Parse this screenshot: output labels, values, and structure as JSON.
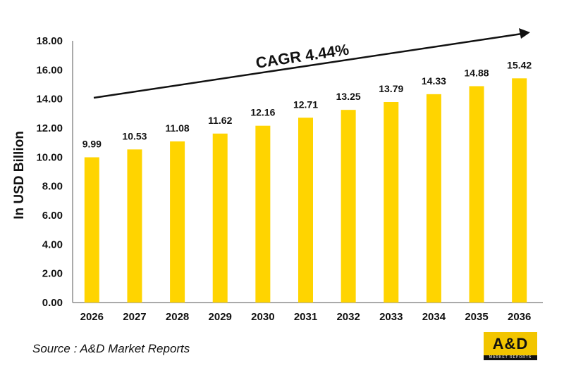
{
  "chart_data": {
    "type": "bar",
    "categories": [
      "2026",
      "2027",
      "2028",
      "2029",
      "2030",
      "2031",
      "2032",
      "2033",
      "2034",
      "2035",
      "2036"
    ],
    "values": [
      9.99,
      10.53,
      11.08,
      11.62,
      12.16,
      12.71,
      13.25,
      13.79,
      14.33,
      14.88,
      15.42
    ],
    "data_labels": [
      "9.99",
      "10.53",
      "11.08",
      "11.62",
      "12.16",
      "12.71",
      "13.25",
      "13.79",
      "14.33",
      "14.88",
      "15.42"
    ],
    "ylabel": "In USD Billion",
    "ylim": [
      0,
      18
    ],
    "yticks": [
      "0.00",
      "2.00",
      "4.00",
      "6.00",
      "8.00",
      "10.00",
      "12.00",
      "14.00",
      "16.00",
      "18.00"
    ],
    "bar_color": "#ffd400",
    "grid": false,
    "annotation": "CAGR 4.44%"
  },
  "source_text": "Source : A&D Market Reports",
  "logo": {
    "text": "A&D",
    "subtext": "MARKET REPORTS",
    "color": "#f2c500"
  }
}
